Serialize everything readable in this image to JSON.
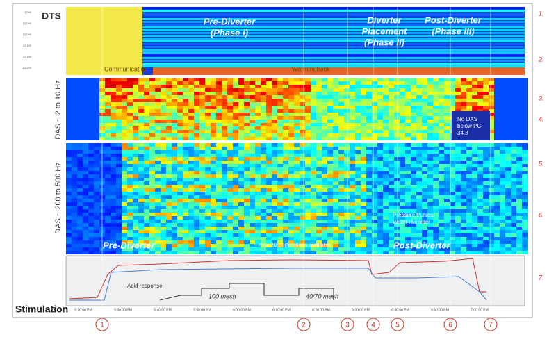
{
  "panels": {
    "dts": {
      "label": "DTS",
      "phase1": [
        "Pre-Diverter",
        "(Phase I)"
      ],
      "phase2": [
        "Diverter",
        "Placement",
        "(Phase II)"
      ],
      "phase3": [
        "Post-Diverter",
        "(Phase III)"
      ],
      "communication": "Communication",
      "warmback": "Warmingback"
    },
    "das_low": {
      "label": "DAS ~ 2 to 10 Hz",
      "note": [
        "No DAS",
        "below PC",
        "34.3"
      ]
    },
    "das_high": {
      "label": "DAS ~ 200 to 500 Hz",
      "pre": "Pre-Diverter",
      "post": "Post-Diverter",
      "perfs": "~ max 20 perforations available",
      "pulses": [
        "Pressure Pulses",
        "Water Hammer"
      ]
    },
    "stimulation": {
      "label": "Stimulation",
      "acid": "Acid response",
      "mesh100": "100 mesh",
      "mesh4070": "40/70 mesh"
    }
  },
  "depth_ticks": [
    "11,950",
    "12,000",
    "12,050",
    "12,100",
    "12,150",
    "12,200"
  ],
  "time_ticks": [
    "5:20:00 PM",
    "5:30:00 PM",
    "5:40:00 PM",
    "5:50:00 PM",
    "6:00:00 PM",
    "6:10:00 PM",
    "6:20:00 PM",
    "6:30:00 PM",
    "6:40:00 PM",
    "6:50:00 PM",
    "7:00:00 PM"
  ],
  "markers": [
    "1",
    "2",
    "3",
    "4",
    "5",
    "6",
    "7"
  ],
  "side_notes": [
    "1.",
    "2.",
    "3.",
    "4.",
    "5.",
    "6.",
    "7."
  ]
}
